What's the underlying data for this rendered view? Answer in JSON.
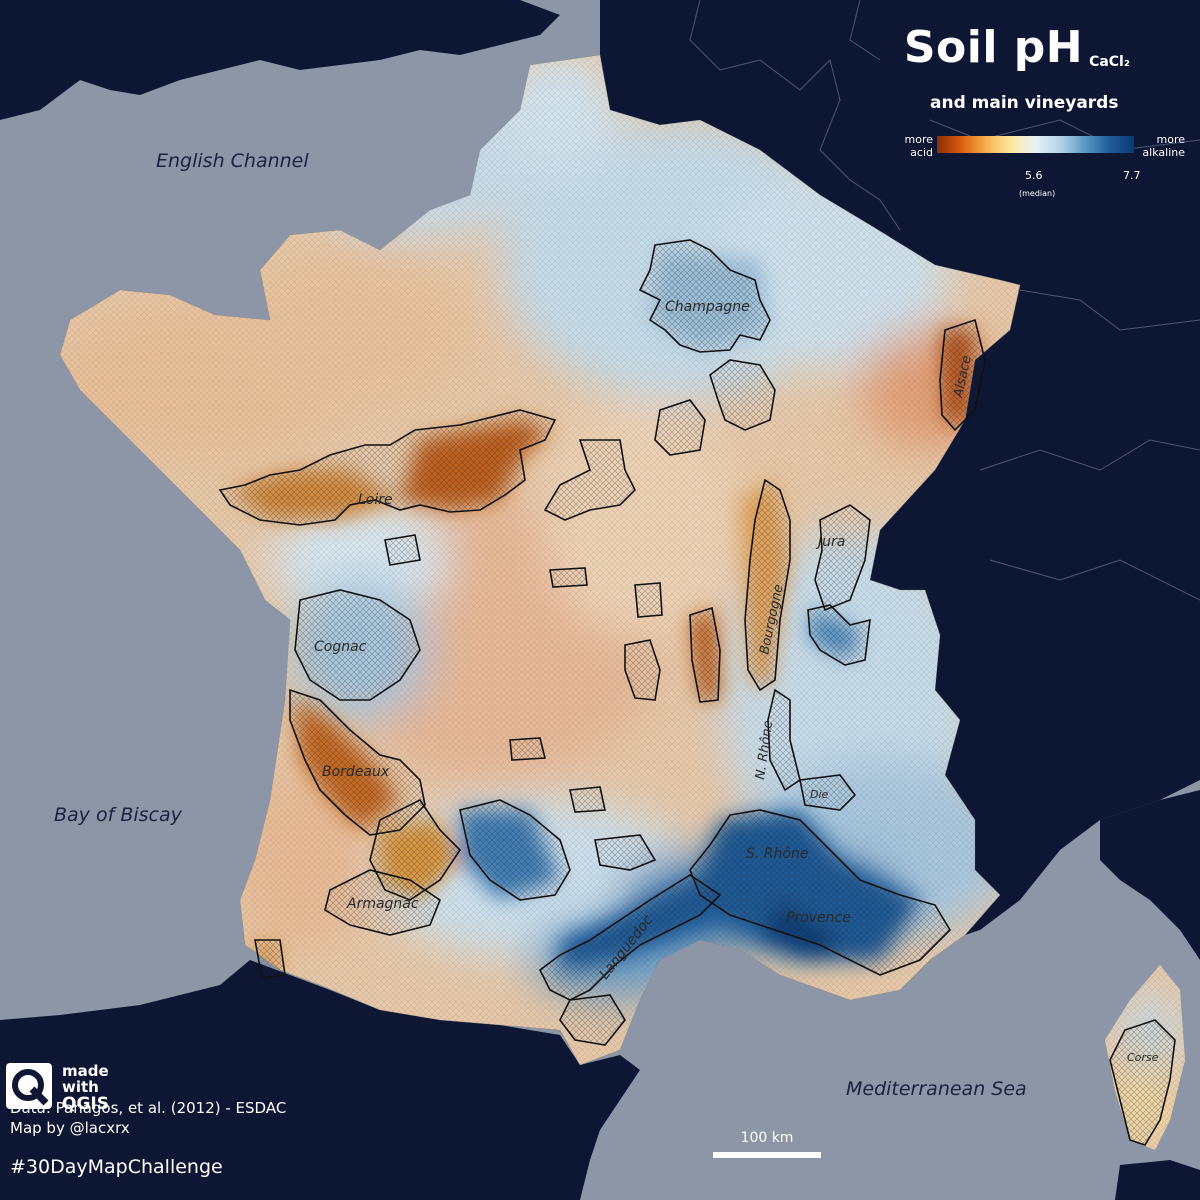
{
  "title": {
    "main": "Soil pH",
    "sub": "CaCl₂",
    "subtitle": "and main vineyards"
  },
  "legend": {
    "left_label_1": "more",
    "left_label_2": "acid",
    "right_label_1": "more",
    "right_label_2": "alkaline",
    "median_value": "5.6",
    "median_note": "(median)",
    "max_value": "7.7"
  },
  "seas": {
    "english_channel": "English Channel",
    "bay_of_biscay": "Bay of Biscay",
    "mediterranean": "Mediterranean Sea"
  },
  "vineyards": {
    "champagne": "Champagne",
    "alsace": "Alsace",
    "loire": "Loire",
    "jura": "Jura",
    "bourgogne": "Bourgogne",
    "cognac": "Cognac",
    "bordeaux": "Bordeaux",
    "n_rhone": "N. Rhône",
    "die": "Die",
    "s_rhone": "S. Rhône",
    "provence": "Provence",
    "languedoc": "Languedoc",
    "armagnac": "Armagnac",
    "corse": "Corse"
  },
  "badge": {
    "line1": "made",
    "line2": "with",
    "line3": "QGIS"
  },
  "credits": {
    "data": "Data: Panagos, et al. (2012) - ESDAC",
    "author": "Map by @lacxrx"
  },
  "hashtag": "#30DayMapChallenge",
  "scale": {
    "label": "100 km"
  },
  "colors": {
    "sea": "#8c96a6",
    "foreign_land": "#0d1633",
    "acid": "#8c2d04",
    "alkaline": "#0b3a73"
  }
}
